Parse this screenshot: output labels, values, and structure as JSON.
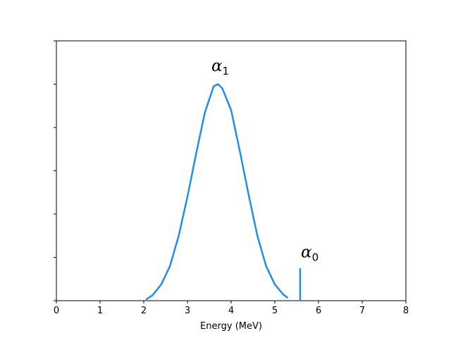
{
  "chart_data": {
    "type": "line",
    "title": "",
    "xlabel": "Energy (MeV)",
    "ylabel": "",
    "xlim": [
      0,
      8
    ],
    "ylim": [
      0,
      1.2
    ],
    "x_ticks": [
      "0",
      "1",
      "2",
      "3",
      "4",
      "5",
      "6",
      "7",
      "8"
    ],
    "y_ticks_count": 7,
    "y_tick_labels_visible": false,
    "grid": false,
    "color": "#1f8ef1",
    "series": [
      {
        "kind": "curve",
        "x": [
          2.05,
          2.2,
          2.4,
          2.6,
          2.8,
          3.0,
          3.2,
          3.4,
          3.6,
          3.7,
          3.8,
          4.0,
          4.2,
          4.4,
          4.6,
          4.8,
          5.0,
          5.2,
          5.3
        ],
        "y": [
          0.005,
          0.025,
          0.075,
          0.16,
          0.3,
          0.48,
          0.68,
          0.87,
          0.99,
          1.0,
          0.98,
          0.88,
          0.69,
          0.49,
          0.3,
          0.16,
          0.075,
          0.027,
          0.013
        ]
      },
      {
        "kind": "line",
        "x": [
          5.58,
          5.58
        ],
        "y": [
          0,
          0.15
        ]
      }
    ],
    "annotations": [
      {
        "symbol": "α",
        "subscript": "1",
        "x": 3.75,
        "y": 1.06
      },
      {
        "symbol": "α",
        "subscript": "0",
        "x": 5.8,
        "y": 0.2
      }
    ]
  }
}
